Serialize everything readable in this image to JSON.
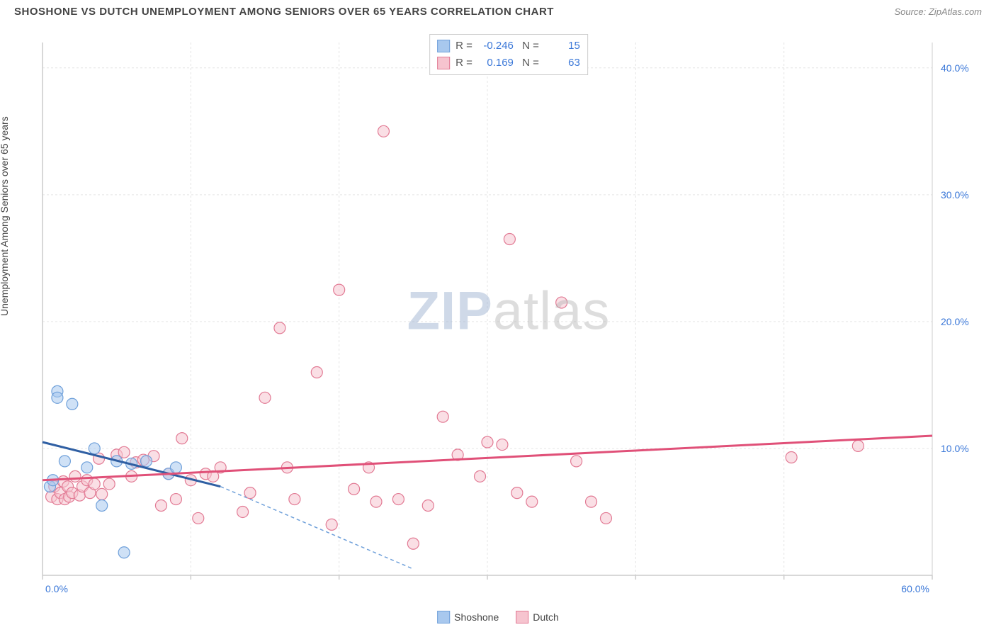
{
  "title": "SHOSHONE VS DUTCH UNEMPLOYMENT AMONG SENIORS OVER 65 YEARS CORRELATION CHART",
  "source": "Source: ZipAtlas.com",
  "watermark": {
    "part1": "ZIP",
    "part2": "atlas"
  },
  "ylabel": "Unemployment Among Seniors over 65 years",
  "chart": {
    "type": "scatter",
    "background_color": "#ffffff",
    "grid_color": "#e5e5e5",
    "axis_color": "#cccccc",
    "xlim": [
      0,
      60
    ],
    "ylim": [
      0,
      42
    ],
    "x_ticks": [
      0,
      10,
      20,
      30,
      40,
      50,
      60
    ],
    "y_ticks": [
      10,
      20,
      30,
      40
    ],
    "x_tick_labels": [
      "0.0%",
      "",
      "",
      "",
      "",
      "",
      "60.0%"
    ],
    "y_tick_labels": [
      "10.0%",
      "20.0%",
      "30.0%",
      "40.0%"
    ],
    "tick_label_color": "#3b78d8",
    "tick_fontsize": 14,
    "marker_radius": 8,
    "marker_opacity": 0.55,
    "series": [
      {
        "name": "Shoshone",
        "fill_color": "#a8c8ee",
        "stroke_color": "#6fa0da",
        "r_value": "-0.246",
        "n_value": "15",
        "trend_solid": {
          "x1": 0,
          "y1": 10.5,
          "x2": 12,
          "y2": 7.0,
          "color": "#2f5fa3",
          "width": 3
        },
        "trend_dashed": {
          "x1": 12,
          "y1": 7.0,
          "x2": 25,
          "y2": 0.5,
          "color": "#6fa0da",
          "width": 1.5,
          "dash": "5,4"
        },
        "points": [
          [
            0.5,
            7.0
          ],
          [
            0.7,
            7.5
          ],
          [
            1.0,
            14.5
          ],
          [
            1.0,
            14.0
          ],
          [
            1.5,
            9.0
          ],
          [
            2.0,
            13.5
          ],
          [
            3.0,
            8.5
          ],
          [
            3.5,
            10.0
          ],
          [
            4.0,
            5.5
          ],
          [
            5.0,
            9.0
          ],
          [
            5.5,
            1.8
          ],
          [
            6.0,
            8.8
          ],
          [
            7.0,
            9.0
          ],
          [
            8.5,
            8.0
          ],
          [
            9.0,
            8.5
          ]
        ]
      },
      {
        "name": "Dutch",
        "fill_color": "#f6c4cf",
        "stroke_color": "#e27a94",
        "r_value": "0.169",
        "n_value": "63",
        "trend_solid": {
          "x1": 0,
          "y1": 7.5,
          "x2": 60,
          "y2": 11.0,
          "color": "#e05078",
          "width": 3
        },
        "points": [
          [
            0.6,
            6.2
          ],
          [
            0.8,
            7.0
          ],
          [
            1.0,
            6.0
          ],
          [
            1.2,
            6.5
          ],
          [
            1.4,
            7.4
          ],
          [
            1.5,
            6.0
          ],
          [
            1.7,
            7.0
          ],
          [
            1.8,
            6.2
          ],
          [
            2.0,
            6.5
          ],
          [
            2.2,
            7.8
          ],
          [
            2.5,
            6.3
          ],
          [
            2.7,
            7.0
          ],
          [
            3.0,
            7.5
          ],
          [
            3.2,
            6.5
          ],
          [
            3.5,
            7.2
          ],
          [
            3.8,
            9.2
          ],
          [
            4.0,
            6.4
          ],
          [
            4.5,
            7.2
          ],
          [
            5.0,
            9.5
          ],
          [
            5.5,
            9.7
          ],
          [
            6.0,
            7.8
          ],
          [
            6.3,
            8.9
          ],
          [
            6.8,
            9.1
          ],
          [
            7.5,
            9.4
          ],
          [
            8.0,
            5.5
          ],
          [
            8.5,
            8.0
          ],
          [
            9.0,
            6.0
          ],
          [
            9.4,
            10.8
          ],
          [
            10.0,
            7.5
          ],
          [
            10.5,
            4.5
          ],
          [
            11.0,
            8.0
          ],
          [
            11.5,
            7.8
          ],
          [
            12.0,
            8.5
          ],
          [
            13.5,
            5.0
          ],
          [
            14.0,
            6.5
          ],
          [
            15.0,
            14.0
          ],
          [
            16.0,
            19.5
          ],
          [
            16.5,
            8.5
          ],
          [
            17.0,
            6.0
          ],
          [
            18.5,
            16.0
          ],
          [
            19.5,
            4.0
          ],
          [
            20.0,
            22.5
          ],
          [
            21.0,
            6.8
          ],
          [
            22.0,
            8.5
          ],
          [
            22.5,
            5.8
          ],
          [
            23.0,
            35.0
          ],
          [
            24.0,
            6.0
          ],
          [
            25.0,
            2.5
          ],
          [
            26.0,
            5.5
          ],
          [
            27.0,
            12.5
          ],
          [
            28.0,
            9.5
          ],
          [
            29.5,
            7.8
          ],
          [
            30.0,
            10.5
          ],
          [
            31.0,
            10.3
          ],
          [
            31.5,
            26.5
          ],
          [
            32.0,
            6.5
          ],
          [
            33.0,
            5.8
          ],
          [
            35.0,
            21.5
          ],
          [
            36.0,
            9.0
          ],
          [
            37.0,
            5.8
          ],
          [
            38.0,
            4.5
          ],
          [
            50.5,
            9.3
          ],
          [
            55.0,
            10.2
          ]
        ]
      }
    ]
  },
  "legend": [
    {
      "label": "Shoshone",
      "fill": "#a8c8ee",
      "stroke": "#6fa0da"
    },
    {
      "label": "Dutch",
      "fill": "#f6c4cf",
      "stroke": "#e27a94"
    }
  ]
}
